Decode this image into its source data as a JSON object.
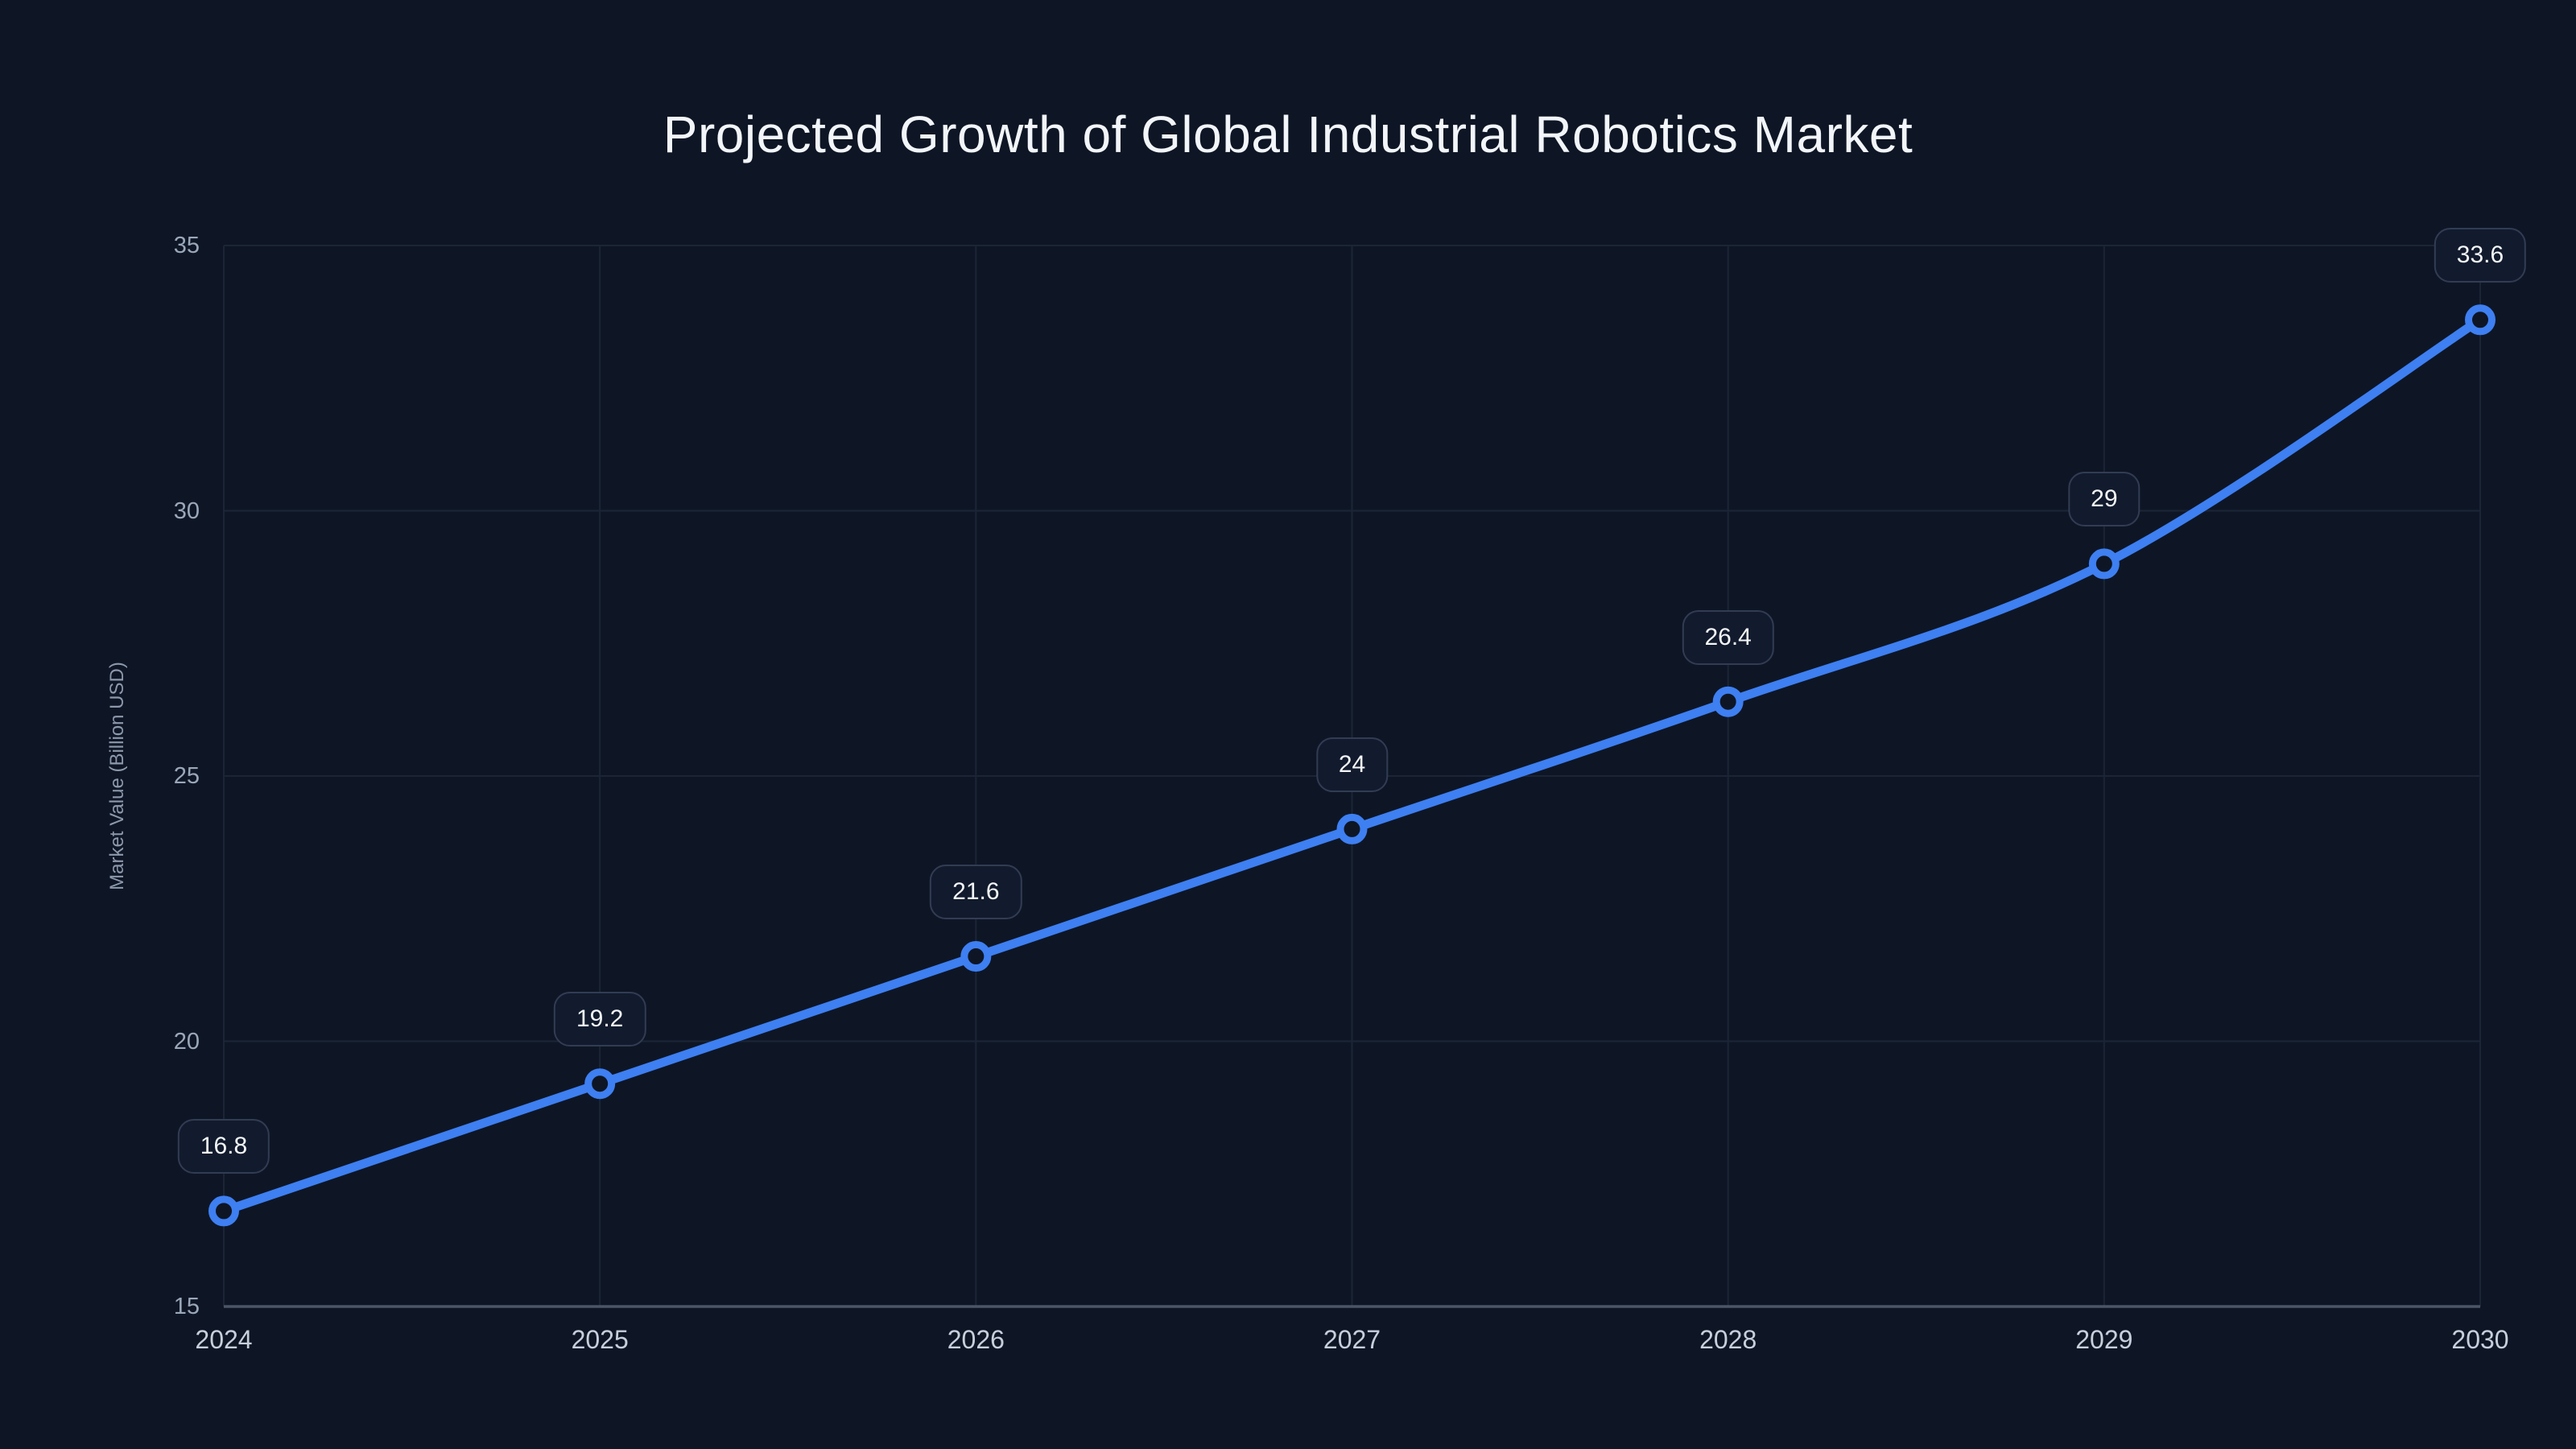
{
  "chart_data": {
    "type": "line",
    "title": "Projected Growth of Global Industrial Robotics Market",
    "xlabel": "",
    "ylabel": "Market Value (Billion USD)",
    "categories": [
      "2024",
      "2025",
      "2026",
      "2027",
      "2028",
      "2029",
      "2030"
    ],
    "series": [
      {
        "name": "Market Value",
        "values": [
          16.8,
          19.2,
          21.6,
          24,
          26.4,
          29,
          33.6
        ],
        "point_labels": [
          "16.8",
          "19.2",
          "21.6",
          "24",
          "26.4",
          "29",
          "33.6"
        ]
      }
    ],
    "ylim": [
      15,
      35
    ],
    "yticks": [
      15,
      20,
      25,
      30,
      35
    ],
    "grid": true,
    "legend_position": "none",
    "line_shape": "spline",
    "marker_style": "open-circle",
    "colors": {
      "line": "#3e7ff2",
      "marker_fill": "#0e1625",
      "background": "#0e1625",
      "gridline": "#1b2536",
      "axis_line": "#4b5566",
      "title_text": "#f2f5f9",
      "y_tick_text": "#9aa7b9",
      "x_tick_text": "#c6cfdb",
      "axis_title_text": "#8c98ab",
      "label_bg": "#121b2d",
      "label_border": "#313c54",
      "label_text": "#f4f6f9"
    }
  }
}
